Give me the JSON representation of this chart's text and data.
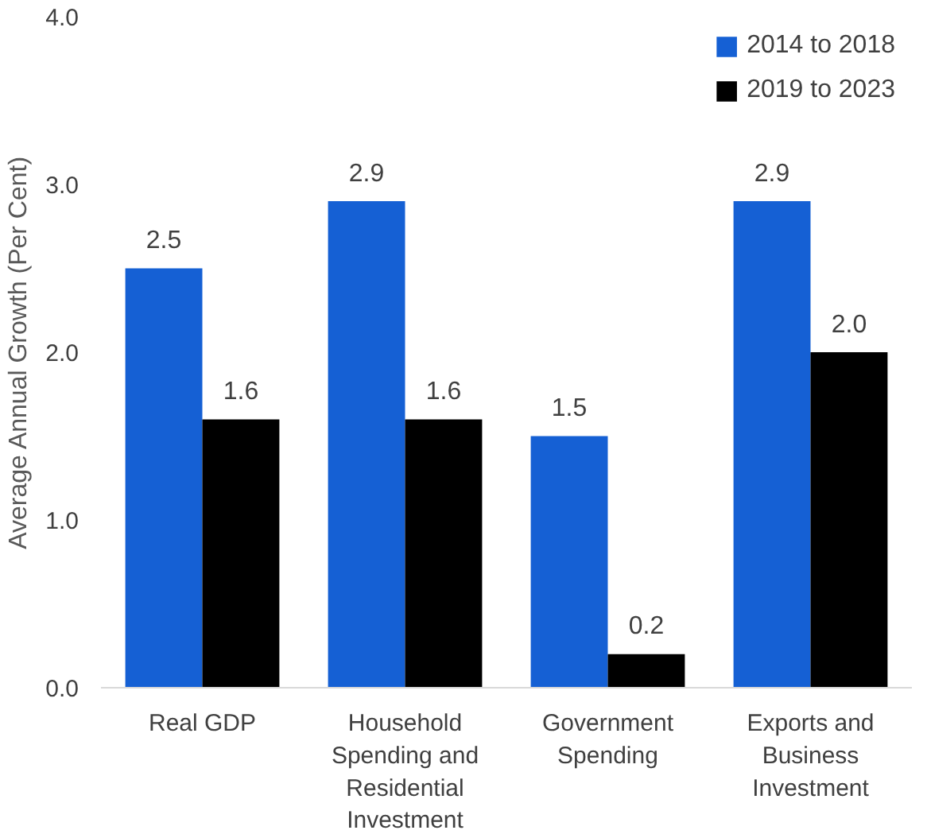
{
  "chart_data": {
    "type": "bar",
    "ylabel": "Average Annual Growth (Per Cent)",
    "categories": [
      "Real GDP",
      "Household Spending and Residential Investment",
      "Government Spending",
      "Exports and Business Investment"
    ],
    "series": [
      {
        "name": "2014 to 2018",
        "color": "#1560d4",
        "values": [
          2.5,
          2.9,
          1.5,
          2.9
        ],
        "value_labels": [
          "2.5",
          "2.9",
          "1.5",
          "2.9"
        ]
      },
      {
        "name": "2019 to 2023",
        "color": "#000000",
        "values": [
          1.6,
          1.6,
          0.2,
          2.0
        ],
        "value_labels": [
          "1.6",
          "1.6",
          "0.2",
          "2.0"
        ]
      }
    ],
    "ylim": [
      0,
      4
    ],
    "yticks": [
      {
        "value": 0,
        "label": "0.0"
      },
      {
        "value": 1,
        "label": "1.0"
      },
      {
        "value": 2,
        "label": "2.0"
      },
      {
        "value": 3,
        "label": "3.0"
      },
      {
        "value": 4,
        "label": "4.0"
      }
    ],
    "legend": "top right",
    "grid": false
  }
}
